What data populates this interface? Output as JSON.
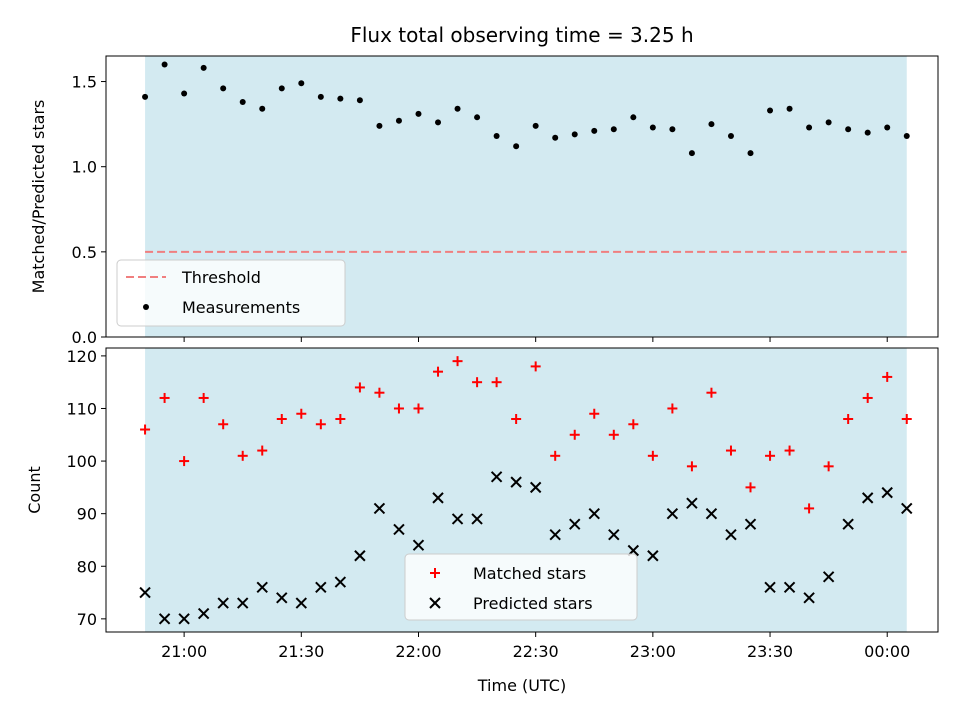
{
  "chart_data": [
    {
      "type": "scatter",
      "title": "Flux total observing time = 3.25 h",
      "ylabel": "Matched/Predicted stars",
      "xlabel": "",
      "ylim": [
        0,
        1.65
      ],
      "y_ticks": [
        0.0,
        0.5,
        1.0,
        1.5
      ],
      "y_tick_labels": [
        "0.0",
        "0.5",
        "1.0",
        "1.5"
      ],
      "shaded_span": {
        "start": "20:50",
        "end": "00:05",
        "color": "#d3eaf1"
      },
      "threshold": {
        "label": "Threshold",
        "value": 0.5,
        "color": "#f07f7f",
        "style": "dashed"
      },
      "measurements": {
        "label": "Measurements",
        "color": "#000000",
        "points": [
          [
            "20:50",
            1.41
          ],
          [
            "20:55",
            1.6
          ],
          [
            "21:00",
            1.43
          ],
          [
            "21:05",
            1.58
          ],
          [
            "21:10",
            1.46
          ],
          [
            "21:15",
            1.38
          ],
          [
            "21:20",
            1.34
          ],
          [
            "21:25",
            1.46
          ],
          [
            "21:30",
            1.49
          ],
          [
            "21:35",
            1.41
          ],
          [
            "21:40",
            1.4
          ],
          [
            "21:45",
            1.39
          ],
          [
            "21:50",
            1.24
          ],
          [
            "21:55",
            1.27
          ],
          [
            "22:00",
            1.31
          ],
          [
            "22:05",
            1.26
          ],
          [
            "22:10",
            1.34
          ],
          [
            "22:15",
            1.29
          ],
          [
            "22:20",
            1.18
          ],
          [
            "22:25",
            1.12
          ],
          [
            "22:30",
            1.24
          ],
          [
            "22:35",
            1.17
          ],
          [
            "22:40",
            1.19
          ],
          [
            "22:45",
            1.21
          ],
          [
            "22:50",
            1.22
          ],
          [
            "22:55",
            1.29
          ],
          [
            "23:00",
            1.23
          ],
          [
            "23:05",
            1.22
          ],
          [
            "23:10",
            1.08
          ],
          [
            "23:15",
            1.25
          ],
          [
            "23:20",
            1.18
          ],
          [
            "23:25",
            1.08
          ],
          [
            "23:30",
            1.33
          ],
          [
            "23:35",
            1.34
          ],
          [
            "23:40",
            1.23
          ],
          [
            "23:45",
            1.26
          ],
          [
            "23:50",
            1.22
          ],
          [
            "23:55",
            1.2
          ],
          [
            "00:00",
            1.23
          ],
          [
            "00:05",
            1.18
          ]
        ]
      },
      "legend_position": "lower-left"
    },
    {
      "type": "scatter",
      "title": "",
      "ylabel": "Count",
      "xlabel": "Time (UTC)",
      "ylim": [
        67.5,
        121.5
      ],
      "y_ticks": [
        70,
        80,
        90,
        100,
        110,
        120
      ],
      "y_tick_labels": [
        "70",
        "80",
        "90",
        "100",
        "110",
        "120"
      ],
      "xlim": [
        "20:40",
        "00:13"
      ],
      "x_ticks": [
        "21:00",
        "21:30",
        "22:00",
        "22:30",
        "23:00",
        "23:30",
        "00:00"
      ],
      "x_tick_labels": [
        "21:00",
        "21:30",
        "22:00",
        "22:30",
        "23:00",
        "23:30",
        "00:00"
      ],
      "shaded_span": {
        "start": "20:50",
        "end": "00:05",
        "color": "#d3eaf1"
      },
      "series": [
        {
          "name": "Matched stars",
          "marker": "plus",
          "color": "#ff0000",
          "points": [
            [
              "20:50",
              106
            ],
            [
              "20:55",
              112
            ],
            [
              "21:00",
              100
            ],
            [
              "21:05",
              112
            ],
            [
              "21:10",
              107
            ],
            [
              "21:15",
              101
            ],
            [
              "21:20",
              102
            ],
            [
              "21:25",
              108
            ],
            [
              "21:30",
              109
            ],
            [
              "21:35",
              107
            ],
            [
              "21:40",
              108
            ],
            [
              "21:45",
              114
            ],
            [
              "21:50",
              113
            ],
            [
              "21:55",
              110
            ],
            [
              "22:00",
              110
            ],
            [
              "22:05",
              117
            ],
            [
              "22:10",
              119
            ],
            [
              "22:15",
              115
            ],
            [
              "22:20",
              115
            ],
            [
              "22:25",
              108
            ],
            [
              "22:30",
              118
            ],
            [
              "22:35",
              101
            ],
            [
              "22:40",
              105
            ],
            [
              "22:45",
              109
            ],
            [
              "22:50",
              105
            ],
            [
              "22:55",
              107
            ],
            [
              "23:00",
              101
            ],
            [
              "23:05",
              110
            ],
            [
              "23:10",
              99
            ],
            [
              "23:15",
              113
            ],
            [
              "23:20",
              102
            ],
            [
              "23:25",
              95
            ],
            [
              "23:30",
              101
            ],
            [
              "23:35",
              102
            ],
            [
              "23:40",
              91
            ],
            [
              "23:45",
              99
            ],
            [
              "23:50",
              108
            ],
            [
              "23:55",
              112
            ],
            [
              "00:00",
              116
            ],
            [
              "00:05",
              108
            ]
          ]
        },
        {
          "name": "Predicted stars",
          "marker": "x",
          "color": "#000000",
          "points": [
            [
              "20:50",
              75
            ],
            [
              "20:55",
              70
            ],
            [
              "21:00",
              70
            ],
            [
              "21:05",
              71
            ],
            [
              "21:10",
              73
            ],
            [
              "21:15",
              73
            ],
            [
              "21:20",
              76
            ],
            [
              "21:25",
              74
            ],
            [
              "21:30",
              73
            ],
            [
              "21:35",
              76
            ],
            [
              "21:40",
              77
            ],
            [
              "21:45",
              82
            ],
            [
              "21:50",
              91
            ],
            [
              "21:55",
              87
            ],
            [
              "22:00",
              84
            ],
            [
              "22:05",
              93
            ],
            [
              "22:10",
              89
            ],
            [
              "22:15",
              89
            ],
            [
              "22:20",
              97
            ],
            [
              "22:25",
              96
            ],
            [
              "22:30",
              95
            ],
            [
              "22:35",
              86
            ],
            [
              "22:40",
              88
            ],
            [
              "22:45",
              90
            ],
            [
              "22:50",
              86
            ],
            [
              "22:55",
              83
            ],
            [
              "23:00",
              82
            ],
            [
              "23:05",
              90
            ],
            [
              "23:10",
              92
            ],
            [
              "23:15",
              90
            ],
            [
              "23:20",
              86
            ],
            [
              "23:25",
              88
            ],
            [
              "23:30",
              76
            ],
            [
              "23:35",
              76
            ],
            [
              "23:40",
              74
            ],
            [
              "23:45",
              78
            ],
            [
              "23:50",
              88
            ],
            [
              "23:55",
              93
            ],
            [
              "00:00",
              94
            ],
            [
              "00:05",
              91
            ]
          ]
        }
      ],
      "legend_position": "lower-center"
    }
  ]
}
